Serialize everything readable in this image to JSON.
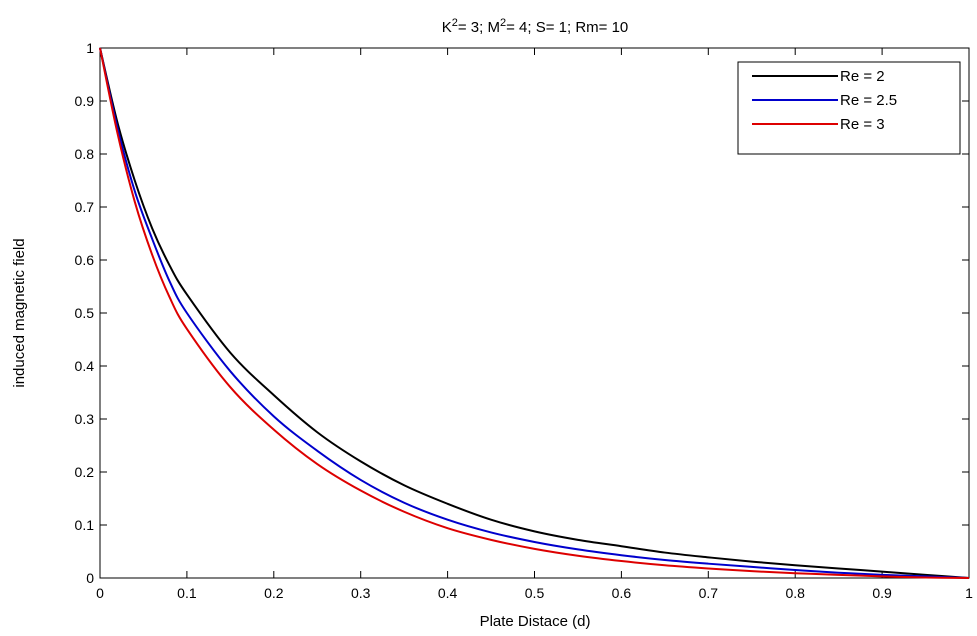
{
  "chart_data": {
    "type": "line",
    "title": "K²= 3; M²= 4; S= 1; Rm= 10",
    "xlabel": "Plate Distace (d)",
    "ylabel": "induced magnetic field",
    "xlim": [
      0,
      1
    ],
    "ylim": [
      0,
      1
    ],
    "xticks": [
      "0",
      "0.1",
      "0.2",
      "0.3",
      "0.4",
      "0.5",
      "0.6",
      "0.7",
      "0.8",
      "0.9",
      "1"
    ],
    "yticks": [
      "0",
      "0.1",
      "0.2",
      "0.3",
      "0.4",
      "0.5",
      "0.6",
      "0.7",
      "0.8",
      "0.9",
      "1"
    ],
    "grid": false,
    "legend_position": "top-right",
    "x": [
      0,
      0.02,
      0.04,
      0.06,
      0.08,
      0.1,
      0.15,
      0.2,
      0.25,
      0.3,
      0.35,
      0.4,
      0.45,
      0.5,
      0.55,
      0.6,
      0.65,
      0.7,
      0.75,
      0.8,
      0.85,
      0.9,
      0.95,
      1.0
    ],
    "series": [
      {
        "name": "Re = 2",
        "color": "#000000",
        "values": [
          1.0,
          0.86,
          0.75,
          0.66,
          0.59,
          0.535,
          0.425,
          0.345,
          0.275,
          0.22,
          0.175,
          0.14,
          0.11,
          0.088,
          0.072,
          0.06,
          0.048,
          0.039,
          0.031,
          0.024,
          0.018,
          0.012,
          0.006,
          0.0
        ]
      },
      {
        "name": "Re = 2.5",
        "color": "#0000cc",
        "values": [
          1.0,
          0.85,
          0.73,
          0.64,
          0.56,
          0.5,
          0.39,
          0.305,
          0.24,
          0.185,
          0.142,
          0.11,
          0.086,
          0.068,
          0.054,
          0.043,
          0.034,
          0.027,
          0.021,
          0.015,
          0.01,
          0.006,
          0.003,
          0.0
        ]
      },
      {
        "name": "Re = 3",
        "color": "#dd0000",
        "values": [
          1.0,
          0.84,
          0.71,
          0.61,
          0.53,
          0.47,
          0.36,
          0.28,
          0.215,
          0.165,
          0.125,
          0.094,
          0.072,
          0.055,
          0.042,
          0.032,
          0.024,
          0.018,
          0.013,
          0.009,
          0.006,
          0.003,
          0.001,
          0.0
        ]
      }
    ]
  }
}
